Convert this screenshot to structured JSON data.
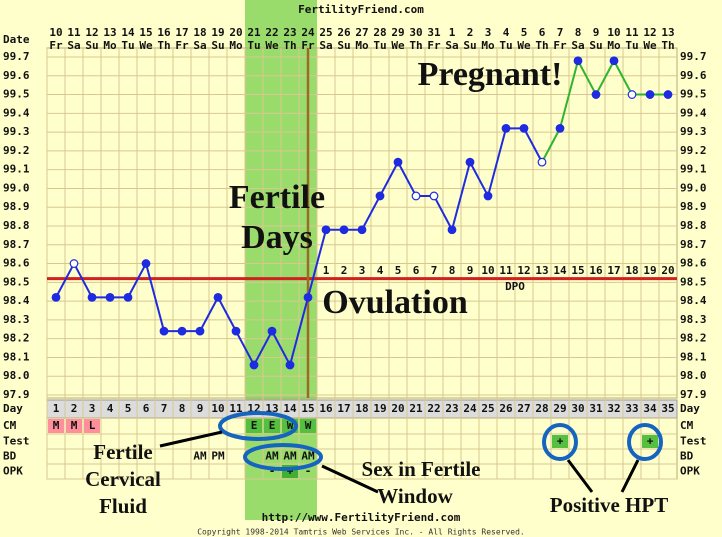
{
  "chart_data": {
    "type": "line",
    "title": "FertilityFriend.com",
    "x": [
      1,
      2,
      3,
      4,
      5,
      6,
      7,
      8,
      9,
      10,
      11,
      12,
      13,
      14,
      15,
      16,
      17,
      18,
      19,
      20,
      21,
      22,
      23,
      24,
      25,
      26,
      27,
      28,
      29,
      30,
      31,
      32,
      33,
      34,
      35
    ],
    "xlim": [
      0.5,
      35.5
    ],
    "dates": [
      "10",
      "11",
      "12",
      "13",
      "14",
      "15",
      "16",
      "17",
      "18",
      "19",
      "20",
      "21",
      "22",
      "23",
      "24",
      "25",
      "26",
      "27",
      "28",
      "29",
      "30",
      "31",
      "1",
      "2",
      "3",
      "4",
      "5",
      "6",
      "7",
      "8",
      "9",
      "10",
      "11",
      "12",
      "13"
    ],
    "weekdays": [
      "Fr",
      "Sa",
      "Su",
      "Mo",
      "Tu",
      "We",
      "Th",
      "Fr",
      "Sa",
      "Su",
      "Mo",
      "Tu",
      "We",
      "Th",
      "Fr",
      "Sa",
      "Su",
      "Mo",
      "Tu",
      "We",
      "Th",
      "Fr",
      "Sa",
      "Su",
      "Mo",
      "Tu",
      "We",
      "Th",
      "Fr",
      "Sa",
      "Su",
      "Mo",
      "Tu",
      "We",
      "Th"
    ],
    "values": [
      98.42,
      98.6,
      98.42,
      98.42,
      98.42,
      98.6,
      98.24,
      98.24,
      98.24,
      98.42,
      98.24,
      98.06,
      98.24,
      98.06,
      98.42,
      98.78,
      98.78,
      98.78,
      98.96,
      99.14,
      98.96,
      98.96,
      98.78,
      99.14,
      98.96,
      99.32,
      99.32,
      99.14,
      99.32,
      99.68,
      99.5,
      99.68,
      99.5,
      99.5,
      99.5
    ],
    "open_markers": [
      false,
      true,
      false,
      false,
      false,
      false,
      false,
      false,
      false,
      false,
      false,
      false,
      false,
      false,
      false,
      false,
      false,
      false,
      false,
      false,
      true,
      true,
      false,
      false,
      false,
      false,
      false,
      true,
      false,
      false,
      false,
      false,
      true,
      false,
      false
    ],
    "color": "#1f2be0",
    "pregnant_color": "#2db52d",
    "pregnant_from_x": 28,
    "ylim": [
      97.9,
      99.7
    ],
    "yticks": [
      97.9,
      {
        "value": 98,
        "label": "98.0"
      },
      98.1,
      98.2,
      98.3,
      98.4,
      98.5,
      98.6,
      98.7,
      98.8,
      98.9,
      {
        "value": 99,
        "label": "99.0"
      },
      99.1,
      99.2,
      99.3,
      99.4,
      99.5,
      99.6,
      99.7
    ],
    "grid": true,
    "coverline": 98.52,
    "ovulation_x": 15,
    "fertile_x": [
      12,
      15
    ],
    "dpo_start_x": 16,
    "dpo": [
      1,
      2,
      3,
      4,
      5,
      6,
      7,
      8,
      9,
      10,
      11,
      12,
      13,
      14,
      15,
      16,
      17,
      18,
      19,
      20
    ],
    "dpo_label": "DPO",
    "row_labels": {
      "date": "Date",
      "day": "Day",
      "cm": "CM",
      "test": "Test",
      "bd": "BD",
      "opk": "OPK"
    },
    "rows": {
      "cm": [
        {
          "x": 1,
          "label": "M"
        },
        {
          "x": 2,
          "label": "M"
        },
        {
          "x": 3,
          "label": "L"
        },
        {
          "x": 12,
          "label": "E"
        },
        {
          "x": 13,
          "label": "E"
        },
        {
          "x": 14,
          "label": "W"
        },
        {
          "x": 15,
          "label": "W"
        }
      ],
      "test": [
        {
          "x": 29,
          "label": "+"
        },
        {
          "x": 34,
          "label": "+"
        }
      ],
      "bd": [
        {
          "x": 9,
          "label": "AM"
        },
        {
          "x": 10,
          "label": "PM"
        },
        {
          "x": 13,
          "label": "AM"
        },
        {
          "x": 14,
          "label": "AM"
        },
        {
          "x": 15,
          "label": "AM"
        }
      ],
      "opk": [
        {
          "x": 13,
          "label": "-"
        },
        {
          "x": 14,
          "label": "+"
        },
        {
          "x": 15,
          "label": "-"
        }
      ]
    },
    "annotations": {
      "pregnant": "Pregnant!",
      "fertile_days": [
        "Fertile",
        "Days"
      ],
      "ovulation": "Ovulation",
      "fertile_cf": [
        "Fertile",
        "Cervical",
        "Fluid"
      ],
      "sex": [
        "Sex in Fertile",
        "Window"
      ],
      "hpt": "Positive HPT"
    },
    "url": "http://www.FertilityFriend.com",
    "copyright": "Copyright 1998-2014 Tamtris Web Services Inc. - All Rights Reserved."
  }
}
